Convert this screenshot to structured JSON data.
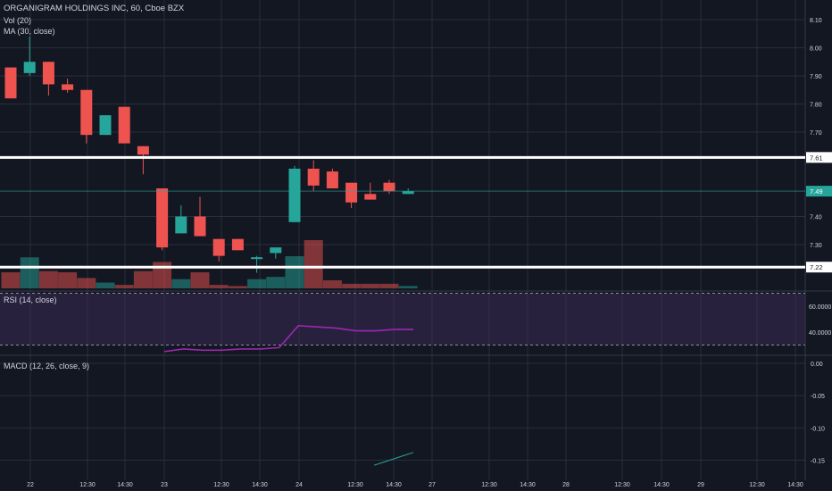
{
  "header": {
    "symbol_title": "ORGANIGRAM HOLDINGS INC, 60, Cboe BZX",
    "volume_label": "Vol (20)",
    "ma_label": "MA (30, close)"
  },
  "colors": {
    "background": "#131722",
    "grid": "#2a2e39",
    "up": "#26a69a",
    "down": "#ef5350",
    "rsi_line": "#9c27b0",
    "rsi_band": "#3a2a55",
    "macd_line": "#26a69a",
    "level_line": "#ffffff"
  },
  "main_pane": {
    "price_ticks": [
      "8.10",
      "8.00",
      "7.90",
      "7.80",
      "7.70",
      "7.61",
      "7.49",
      "7.40",
      "7.30",
      "7.22"
    ],
    "levels": [
      {
        "price": 7.61,
        "label": "7.61"
      },
      {
        "price": 7.22,
        "label": "7.22"
      }
    ],
    "last_price": {
      "price": 7.49,
      "label": "7.49"
    }
  },
  "rsi_pane": {
    "label": "RSI (14, close)",
    "ticks": [
      "60.0000",
      "40.0000"
    ],
    "values": [
      25,
      27,
      26,
      26,
      27,
      27,
      28,
      45,
      44,
      43,
      41,
      41,
      42,
      42
    ]
  },
  "macd_pane": {
    "label": "MACD (12, 26, close, 9)",
    "ticks": [
      "0.00",
      "-0.05",
      "-0.10",
      "-0.15"
    ],
    "values": [
      -0.158,
      -0.153,
      -0.148,
      -0.143,
      -0.138
    ]
  },
  "time_axis": {
    "labels": [
      "22",
      "12:30",
      "14:30",
      "23",
      "12:30",
      "14:30",
      "24",
      "12:30",
      "14:30",
      "27",
      "12:30",
      "14:30",
      "28",
      "12:30",
      "14:30",
      "29",
      "12:30",
      "14:30"
    ]
  },
  "chart_data": {
    "type": "candlestick",
    "title": "ORGANIGRAM HOLDINGS INC, 60, Cboe BZX",
    "ylim": [
      7.17,
      8.14
    ],
    "candles": [
      {
        "o": 7.93,
        "h": 7.93,
        "l": 7.82,
        "c": 7.82,
        "vol": 14
      },
      {
        "o": 7.91,
        "h": 8.04,
        "l": 7.9,
        "c": 7.95,
        "vol": 27
      },
      {
        "o": 7.95,
        "h": 7.95,
        "l": 7.83,
        "c": 7.87,
        "vol": 15
      },
      {
        "o": 7.87,
        "h": 7.89,
        "l": 7.84,
        "c": 7.85,
        "vol": 14
      },
      {
        "o": 7.85,
        "h": 7.85,
        "l": 7.66,
        "c": 7.69,
        "vol": 9
      },
      {
        "o": 7.69,
        "h": 7.76,
        "l": 7.69,
        "c": 7.76,
        "vol": 5
      },
      {
        "o": 7.79,
        "h": 7.79,
        "l": 7.66,
        "c": 7.66,
        "vol": 3
      },
      {
        "o": 7.65,
        "h": 7.65,
        "l": 7.55,
        "c": 7.62,
        "vol": 15
      },
      {
        "o": 7.5,
        "h": 7.5,
        "l": 7.28,
        "c": 7.29,
        "vol": 23
      },
      {
        "o": 7.34,
        "h": 7.44,
        "l": 7.34,
        "c": 7.4,
        "vol": 8
      },
      {
        "o": 7.4,
        "h": 7.47,
        "l": 7.33,
        "c": 7.33,
        "vol": 14
      },
      {
        "o": 7.32,
        "h": 7.32,
        "l": 7.24,
        "c": 7.26,
        "vol": 3
      },
      {
        "o": 7.32,
        "h": 7.32,
        "l": 7.28,
        "c": 7.28,
        "vol": 2
      },
      {
        "o": 7.255,
        "h": 7.26,
        "l": 7.2,
        "c": 7.255,
        "vol": 8
      },
      {
        "o": 7.27,
        "h": 7.29,
        "l": 7.25,
        "c": 7.29,
        "vol": 10
      },
      {
        "o": 7.38,
        "h": 7.58,
        "l": 7.38,
        "c": 7.57,
        "vol": 28
      },
      {
        "o": 7.57,
        "h": 7.6,
        "l": 7.49,
        "c": 7.51,
        "vol": 42
      },
      {
        "o": 7.56,
        "h": 7.57,
        "l": 7.5,
        "c": 7.5,
        "vol": 7
      },
      {
        "o": 7.52,
        "h": 7.52,
        "l": 7.43,
        "c": 7.45,
        "vol": 4
      },
      {
        "o": 7.48,
        "h": 7.52,
        "l": 7.46,
        "c": 7.46,
        "vol": 4
      },
      {
        "o": 7.52,
        "h": 7.53,
        "l": 7.48,
        "c": 7.49,
        "vol": 4
      },
      {
        "o": 7.48,
        "h": 7.5,
        "l": 7.48,
        "c": 7.49,
        "vol": 2
      }
    ]
  }
}
